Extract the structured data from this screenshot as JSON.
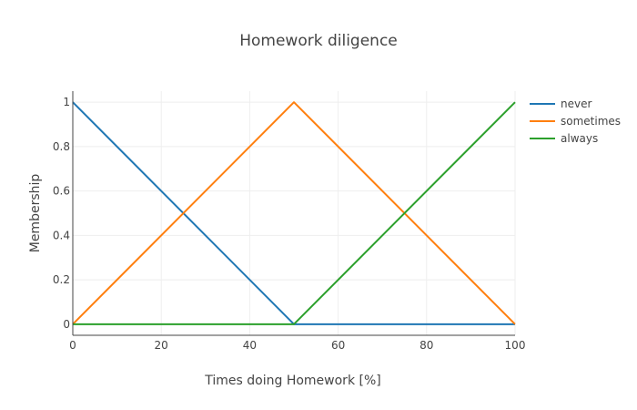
{
  "chart_data": {
    "type": "line",
    "title": "Homework diligence",
    "xlabel": "Times doing Homework [%]",
    "ylabel": "Membership",
    "xlim": [
      0,
      100
    ],
    "ylim": [
      -0.05,
      1.05
    ],
    "xticks": [
      0,
      20,
      40,
      60,
      80,
      100
    ],
    "yticks": [
      0,
      0.2,
      0.4,
      0.6,
      0.8,
      1
    ],
    "xtick_labels": [
      "0",
      "20",
      "40",
      "60",
      "80",
      "100"
    ],
    "ytick_labels": [
      "0",
      "0.2",
      "0.4",
      "0.6",
      "0.8",
      "1"
    ],
    "grid": true,
    "legend_position": "top-right",
    "series": [
      {
        "name": "never",
        "color": "#1f77b4",
        "x": [
          0,
          50,
          100
        ],
        "y": [
          1,
          0,
          0
        ]
      },
      {
        "name": "sometimes",
        "color": "#ff7f0e",
        "x": [
          0,
          50,
          100
        ],
        "y": [
          0,
          1,
          0
        ]
      },
      {
        "name": "always",
        "color": "#2ca02c",
        "x": [
          0,
          50,
          100
        ],
        "y": [
          0,
          0,
          1
        ]
      }
    ]
  }
}
